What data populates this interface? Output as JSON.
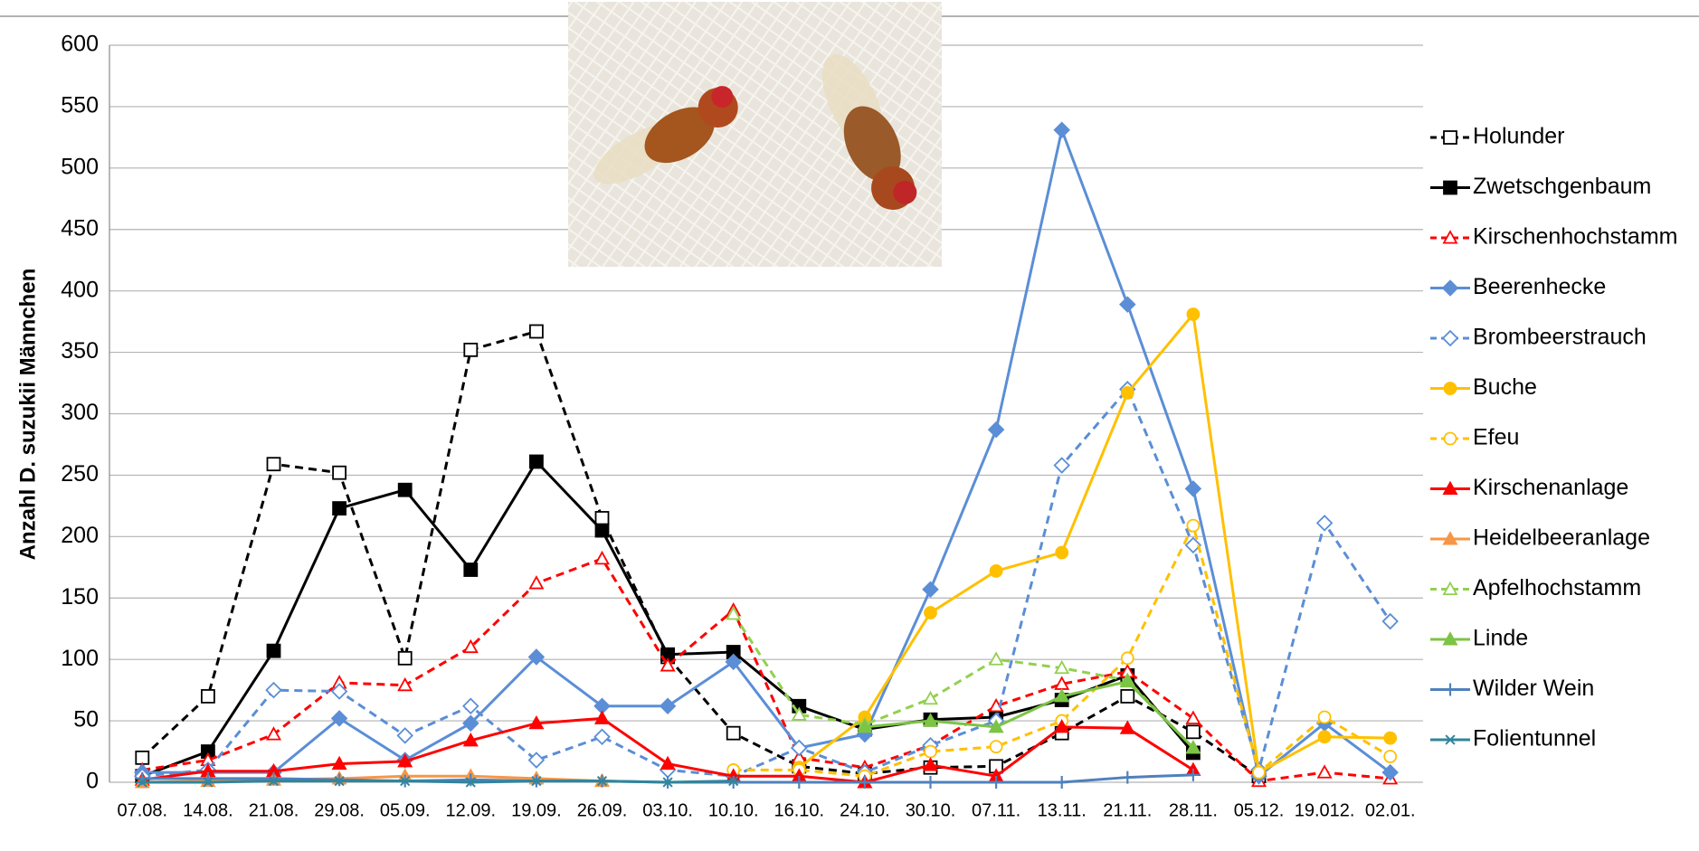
{
  "chart_data": {
    "type": "line",
    "y_label": "Anzahl D. suzukii Männchen",
    "categories": [
      "07.08.",
      "14.08.",
      "21.08.",
      "29.08.",
      "05.09.",
      "12.09.",
      "19.09.",
      "26.09.",
      "03.10.",
      "10.10.",
      "16.10.",
      "24.10.",
      "30.10.",
      "07.11.",
      "13.11.",
      "21.11.",
      "28.11.",
      "05.12.",
      "19.012.",
      "02.01."
    ],
    "ylim": [
      0,
      600
    ],
    "yticks": [
      0,
      50,
      100,
      150,
      200,
      250,
      300,
      350,
      400,
      450,
      500,
      550,
      600
    ],
    "grid": true,
    "series": [
      {
        "name": "Holunder",
        "color": "#000000",
        "dash": true,
        "marker": "square",
        "filled": false,
        "values": [
          20,
          70,
          259,
          252,
          101,
          352,
          367,
          215,
          102,
          40,
          13,
          7,
          12,
          13,
          40,
          70,
          41,
          5,
          null,
          null
        ]
      },
      {
        "name": "Zwetschgenbaum",
        "color": "#000000",
        "dash": false,
        "marker": "square",
        "filled": true,
        "values": [
          5,
          25,
          107,
          223,
          238,
          173,
          261,
          205,
          104,
          106,
          62,
          43,
          51,
          53,
          67,
          87,
          24,
          null,
          null,
          null
        ]
      },
      {
        "name": "Kirschenhochstamm",
        "color": "#ff0000",
        "dash": true,
        "marker": "triangle",
        "filled": false,
        "values": [
          10,
          18,
          39,
          81,
          79,
          110,
          162,
          182,
          95,
          140,
          20,
          12,
          30,
          62,
          80,
          90,
          52,
          1,
          8,
          3
        ]
      },
      {
        "name": "Beerenhecke",
        "color": "#5b8ed6",
        "dash": false,
        "marker": "diamond",
        "filled": true,
        "values": [
          8,
          8,
          8,
          52,
          18,
          48,
          102,
          62,
          62,
          98,
          28,
          39,
          157,
          287,
          531,
          389,
          239,
          5,
          48,
          8
        ]
      },
      {
        "name": "Brombeerstrauch",
        "color": "#5b8ed6",
        "dash": true,
        "marker": "diamond",
        "filled": false,
        "values": [
          5,
          10,
          75,
          74,
          38,
          62,
          18,
          37,
          10,
          5,
          28,
          8,
          30,
          50,
          258,
          320,
          193,
          10,
          211,
          131
        ]
      },
      {
        "name": "Buche",
        "color": "#ffc000",
        "dash": false,
        "marker": "circle",
        "filled": true,
        "values": [
          null,
          null,
          null,
          null,
          null,
          null,
          null,
          null,
          null,
          null,
          12,
          53,
          138,
          172,
          187,
          317,
          381,
          8,
          37,
          36
        ]
      },
      {
        "name": "Efeu",
        "color": "#ffc000",
        "dash": true,
        "marker": "circle",
        "filled": false,
        "values": [
          null,
          null,
          null,
          null,
          null,
          null,
          null,
          null,
          null,
          10,
          10,
          5,
          25,
          29,
          50,
          101,
          209,
          8,
          53,
          21
        ]
      },
      {
        "name": "Kirschenanlage",
        "color": "#ff0000",
        "dash": false,
        "marker": "triangle",
        "filled": true,
        "values": [
          2,
          9,
          9,
          15,
          17,
          34,
          48,
          52,
          15,
          5,
          5,
          0,
          14,
          5,
          45,
          44,
          10,
          null,
          null,
          null
        ]
      },
      {
        "name": "Heidelbeeranlage",
        "color": "#f79646",
        "dash": false,
        "marker": "triangle",
        "filled": true,
        "values": [
          0,
          1,
          2,
          3,
          5,
          5,
          3,
          1,
          null,
          null,
          null,
          null,
          null,
          null,
          null,
          null,
          null,
          null,
          null,
          null
        ]
      },
      {
        "name": "Apfelhochstamm",
        "color": "#92d050",
        "dash": true,
        "marker": "triangle",
        "filled": false,
        "values": [
          null,
          null,
          null,
          null,
          null,
          null,
          null,
          null,
          null,
          137,
          55,
          47,
          68,
          100,
          93,
          83,
          28,
          null,
          null,
          null
        ]
      },
      {
        "name": "Linde",
        "color": "#7cc444",
        "dash": false,
        "marker": "triangle",
        "filled": true,
        "values": [
          null,
          null,
          null,
          null,
          null,
          null,
          null,
          null,
          null,
          null,
          null,
          45,
          50,
          45,
          70,
          82,
          28,
          null,
          null,
          null
        ]
      },
      {
        "name": "Wilder Wein",
        "color": "#4f81bd",
        "dash": false,
        "marker": "plus",
        "filled": true,
        "values": [
          3,
          3,
          3,
          2,
          1,
          2,
          1,
          1,
          0,
          0,
          0,
          0,
          0,
          0,
          0,
          4,
          6,
          null,
          null,
          null
        ]
      },
      {
        "name": "Folientunnel",
        "color": "#31859c",
        "dash": false,
        "marker": "star",
        "filled": true,
        "values": [
          0,
          0,
          1,
          1,
          1,
          0,
          1,
          1,
          0,
          1,
          null,
          null,
          null,
          null,
          null,
          null,
          null,
          null,
          null,
          null
        ]
      }
    ]
  }
}
